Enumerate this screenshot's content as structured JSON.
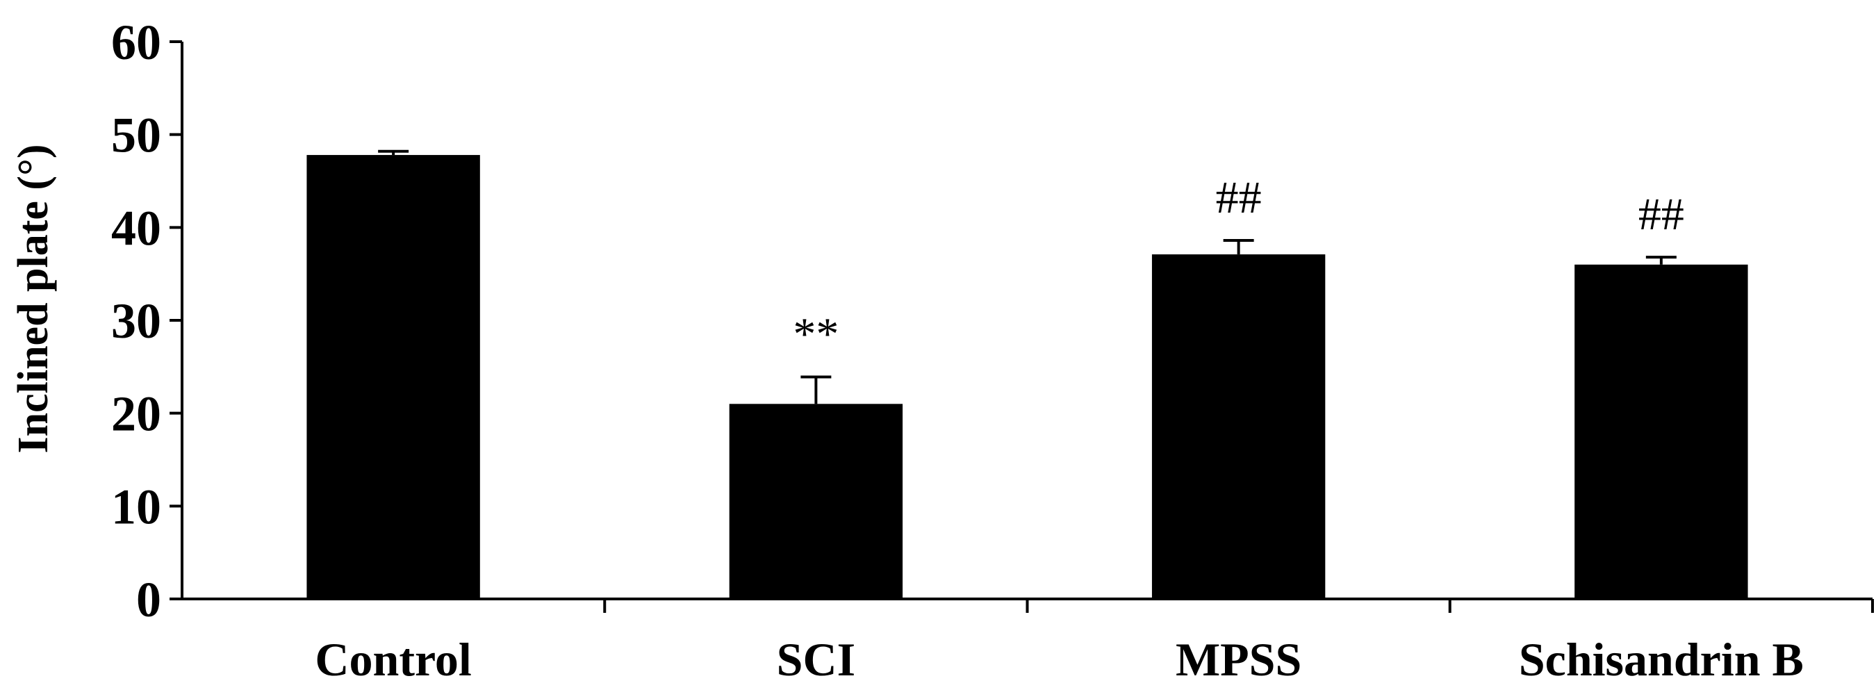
{
  "chart_data": {
    "type": "bar",
    "title": "",
    "xlabel": "",
    "ylabel": "Inclined plate (°)",
    "ylim": [
      0,
      60
    ],
    "yticks": [
      0,
      10,
      20,
      30,
      40,
      50,
      60
    ],
    "categories": [
      "Control",
      "SCI",
      "MPSS",
      "Schisandrin B"
    ],
    "values": [
      47.8,
      21.0,
      37.1,
      36.0
    ],
    "error_bars": [
      0.4,
      2.9,
      1.5,
      0.8
    ],
    "annotations": [
      "",
      "**",
      "##",
      "##"
    ],
    "bar_color": "#000000",
    "grid": false,
    "legend": "none"
  }
}
